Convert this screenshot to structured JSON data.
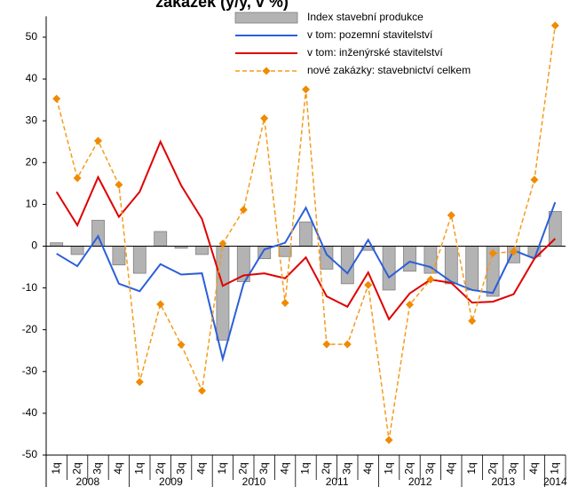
{
  "chart_data": {
    "type": "bar-line",
    "title": "zakázek (y/y, v %)",
    "categories": [
      "1q",
      "2q",
      "3q",
      "4q",
      "1q",
      "2q",
      "3q",
      "4q",
      "1q",
      "2q",
      "3q",
      "4q",
      "1q",
      "2q",
      "3q",
      "4q",
      "1q",
      "2q",
      "3q",
      "4q",
      "1q",
      "2q",
      "3q",
      "4q",
      "1q"
    ],
    "years": [
      "2008",
      "2009",
      "2010",
      "2011",
      "2012",
      "2013",
      "2014"
    ],
    "series": [
      {
        "name": "Index stavební produkce",
        "kind": "bar",
        "color": "#b3b3b3",
        "values": [
          0.8,
          -2,
          6.2,
          -4.5,
          -6.5,
          3.5,
          -0.5,
          -2,
          -22.5,
          -8.5,
          -3,
          -2.5,
          5.8,
          -5.5,
          -9,
          -1,
          -10.5,
          -6,
          -6.5,
          -9,
          -10.5,
          -12,
          -4,
          -2.5,
          8.3
        ]
      },
      {
        "name": "v tom: pozemní stavitelství",
        "kind": "line",
        "color": "#2b5fd9",
        "values": [
          -1.8,
          -4.8,
          2.4,
          -9,
          -10.8,
          -4.3,
          -6.8,
          -6.5,
          -27,
          -9,
          -0.8,
          0.8,
          9.2,
          -2,
          -6.5,
          1.5,
          -7.5,
          -3.7,
          -5,
          -8.5,
          -10.5,
          -11.2,
          -1,
          -3,
          10.5
        ]
      },
      {
        "name": "v tom: inženýrské stavitelství",
        "kind": "line",
        "color": "#e00000",
        "values": [
          13,
          5,
          16.5,
          7,
          13,
          25,
          14.5,
          6.5,
          -9.5,
          -7,
          -6.5,
          -7.7,
          -2.7,
          -12,
          -14.5,
          -6.3,
          -17.5,
          -11.3,
          -8,
          -8.8,
          -13.5,
          -13.3,
          -11.5,
          -3,
          1.8
        ]
      },
      {
        "name": "nové zakázky: stavebnictví celkem",
        "kind": "dashed-marker",
        "color": "#f59b1c",
        "values": [
          35.3,
          16.3,
          25.2,
          14.7,
          -32.5,
          -13.9,
          -23.6,
          -34.6,
          0.6,
          8.7,
          30.6,
          -13.6,
          37.5,
          -23.5,
          -23.5,
          -9.3,
          -46.4,
          -14,
          -8,
          7.4,
          -17.9,
          -1.7,
          -1.3,
          15.9,
          52.8
        ]
      }
    ],
    "ylim": [
      -50,
      55
    ],
    "yticks": [
      -50,
      -40,
      -30,
      -20,
      -10,
      0,
      10,
      20,
      30,
      40,
      50
    ],
    "grid": false,
    "legend": "top-right"
  }
}
